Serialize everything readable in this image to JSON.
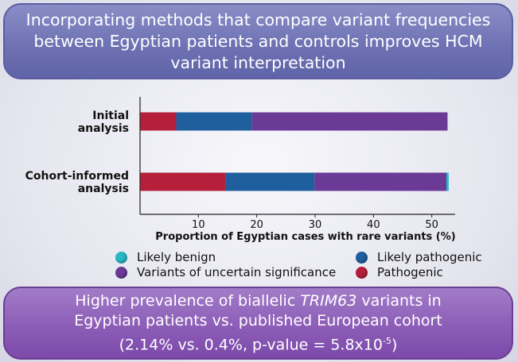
{
  "header": {
    "line1": "Incorporating methods that compare variant frequencies",
    "line2": "between Egyptian patients and controls improves HCM",
    "line3": "variant interpretation"
  },
  "footer": {
    "line1_pre": "Higher prevalence of biallelic ",
    "line1_gene": "TRIM63",
    "line1_post": " variants in",
    "line2": "Egyptian patients vs. published European cohort",
    "line3": "(2.14% vs. 0.4%, p-value = 5.8x10",
    "line3_exp": "-5",
    "line3_end": ")"
  },
  "colors": {
    "likely_benign": "#2ab7c3",
    "likely_pathogenic": "#1f5f9e",
    "vus": "#6b3a97",
    "pathogenic": "#b51f3a"
  },
  "legend": {
    "likely_benign": "Likely benign",
    "likely_pathogenic": "Likely pathogenic",
    "vus": "Variants of uncertain significance",
    "pathogenic": "Pathogenic"
  },
  "chart_data": {
    "type": "bar",
    "orientation": "horizontal",
    "stacked": true,
    "categories": [
      [
        "Initial",
        "analysis"
      ],
      [
        "Cohort-informed",
        "analysis"
      ]
    ],
    "series": [
      {
        "name": "Pathogenic",
        "key": "pathogenic",
        "values": [
          6.2,
          14.6
        ]
      },
      {
        "name": "Likely pathogenic",
        "key": "likely_pathogenic",
        "values": [
          13.0,
          15.3
        ]
      },
      {
        "name": "Variants of uncertain significance",
        "key": "vus",
        "values": [
          33.5,
          22.6
        ]
      },
      {
        "name": "Likely benign",
        "key": "likely_benign",
        "values": [
          0,
          0.4
        ]
      }
    ],
    "xlabel": "Proportion of Egyptian cases with rare variants (%)",
    "xlim": [
      0,
      54
    ],
    "xticks": [
      10,
      20,
      30,
      40,
      50
    ],
    "grid": false
  }
}
